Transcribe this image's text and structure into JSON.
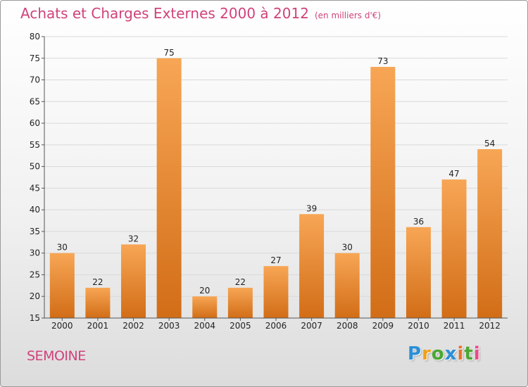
{
  "header": {
    "title": "Achats et Charges Externes 2000 à 2012",
    "subtitle": "(en milliers d'€)"
  },
  "footer": {
    "place": "SEMOINE",
    "logo_letters": [
      {
        "ch": "P",
        "color": "#2a8fd8"
      },
      {
        "ch": "r",
        "color": "#f0a018"
      },
      {
        "ch": "o",
        "color": "#4aa832"
      },
      {
        "ch": "x",
        "color": "#2a8fd8"
      },
      {
        "ch": "i",
        "color": "#e8702a"
      },
      {
        "ch": "t",
        "color": "#4aa832"
      },
      {
        "ch": "i",
        "color": "#e84a8a"
      }
    ]
  },
  "colors": {
    "title": "#d0427a",
    "bar_top": "#f7a655",
    "bar_bottom": "#d26d17",
    "grid": "#d9d9d9",
    "axis": "#555555"
  },
  "chart_data": {
    "type": "bar",
    "title": "Achats et Charges Externes 2000 à 2012",
    "subtitle": "(en milliers d'€)",
    "categories": [
      "2000",
      "2001",
      "2002",
      "2003",
      "2004",
      "2005",
      "2006",
      "2007",
      "2008",
      "2009",
      "2010",
      "2011",
      "2012"
    ],
    "values": [
      30,
      22,
      32,
      75,
      20,
      22,
      27,
      39,
      30,
      73,
      36,
      47,
      54
    ],
    "ylim": [
      15,
      80
    ],
    "yticks": [
      15,
      20,
      25,
      30,
      35,
      40,
      45,
      50,
      55,
      60,
      65,
      70,
      75,
      80
    ],
    "grid": true,
    "xlabel": "",
    "ylabel": ""
  }
}
